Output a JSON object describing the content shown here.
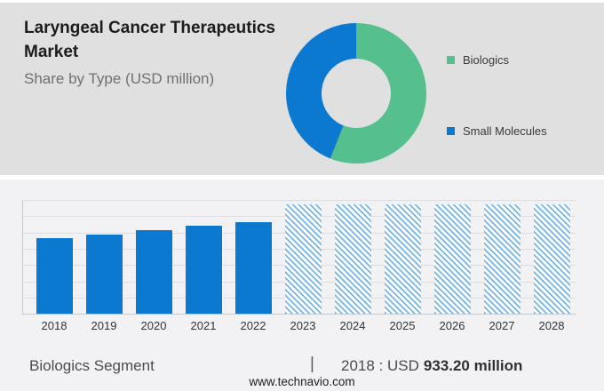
{
  "header": {
    "title": "Laryngeal Cancer Therapeutics Market",
    "subtitle": "Share by Type (USD million)"
  },
  "legend": {
    "items": [
      {
        "label": "Biologics",
        "color": "#55bf8d"
      },
      {
        "label": "Small Molecules",
        "color": "#0b79d0"
      }
    ]
  },
  "footer": {
    "segment_label": "Biologics Segment",
    "divider": "|",
    "value_prefix": "2018 : USD",
    "value_bold": "933.20 million",
    "website": "www.technavio.com"
  },
  "colors": {
    "header_background": "#e0e0e1",
    "chart_background": "#f2f2f4",
    "bar_blue": "#0b79d0",
    "donut_green": "#55bf8d",
    "hatch_blue": "#78b4e5",
    "gridline": "#dedee1"
  },
  "chart_data": [
    {
      "type": "pie",
      "subtype": "donut",
      "title": "Share by Type (USD million)",
      "labels": [
        "Biologics",
        "Small Molecules"
      ],
      "values": [
        56,
        44
      ],
      "unit": "percent-share (estimated from arc angles)",
      "colors": [
        "#55bf8d",
        "#0b79d0"
      ],
      "legend_position": "right",
      "start_angle_deg": 0,
      "direction": "clockwise"
    },
    {
      "type": "bar",
      "title": "Laryngeal Cancer Therapeutics Market by year (USD million)",
      "categories": [
        "2018",
        "2019",
        "2020",
        "2021",
        "2022",
        "2023",
        "2024",
        "2025",
        "2026",
        "2027",
        "2028"
      ],
      "values": [
        933.2,
        980,
        1030,
        1080,
        1125,
        1345,
        1345,
        1345,
        1345,
        1345,
        1345
      ],
      "known_value_2018": 933.2,
      "values_note": "only 2018 labeled (USD 933.20 million); others estimated from bar heights; 2023-2028 are uniform forecast placeholder bars",
      "actual_categories": [
        "2018",
        "2019",
        "2020",
        "2021",
        "2022"
      ],
      "forecast_categories": [
        "2023",
        "2024",
        "2025",
        "2026",
        "2027",
        "2028"
      ],
      "forecast_style": "hatched",
      "bar_color": "#0b79d0",
      "hatch_color": "#78b4e5",
      "xlabel": "",
      "ylabel": "",
      "ylim": [
        0,
        1400
      ],
      "gridline_step": 200,
      "grid": true,
      "legend_position": "none"
    }
  ]
}
